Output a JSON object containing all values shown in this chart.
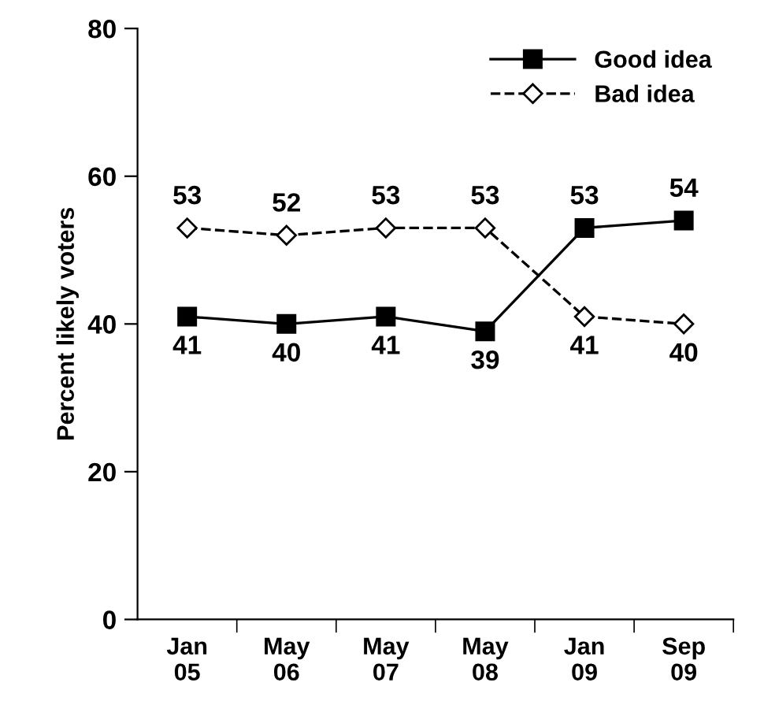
{
  "chart_data": {
    "type": "line",
    "ylabel": "Percent likely voters",
    "categories": [
      "Jan\n05",
      "May\n06",
      "May\n07",
      "May\n08",
      "Jan\n09",
      "Sep\n09"
    ],
    "series": [
      {
        "name": "Good idea",
        "color": "#000000",
        "values": [
          41,
          40,
          41,
          39,
          53,
          54
        ],
        "marker": "square",
        "line_style": "solid"
      },
      {
        "name": "Bad idea",
        "color": "#000000",
        "values": [
          53,
          52,
          53,
          53,
          41,
          40
        ],
        "marker": "diamond",
        "line_style": "dashed"
      }
    ],
    "ylim": [
      0,
      80
    ],
    "yticks": [
      0,
      20,
      40,
      60,
      80
    ],
    "grid": false,
    "legend": "top right",
    "data_labels": true
  }
}
